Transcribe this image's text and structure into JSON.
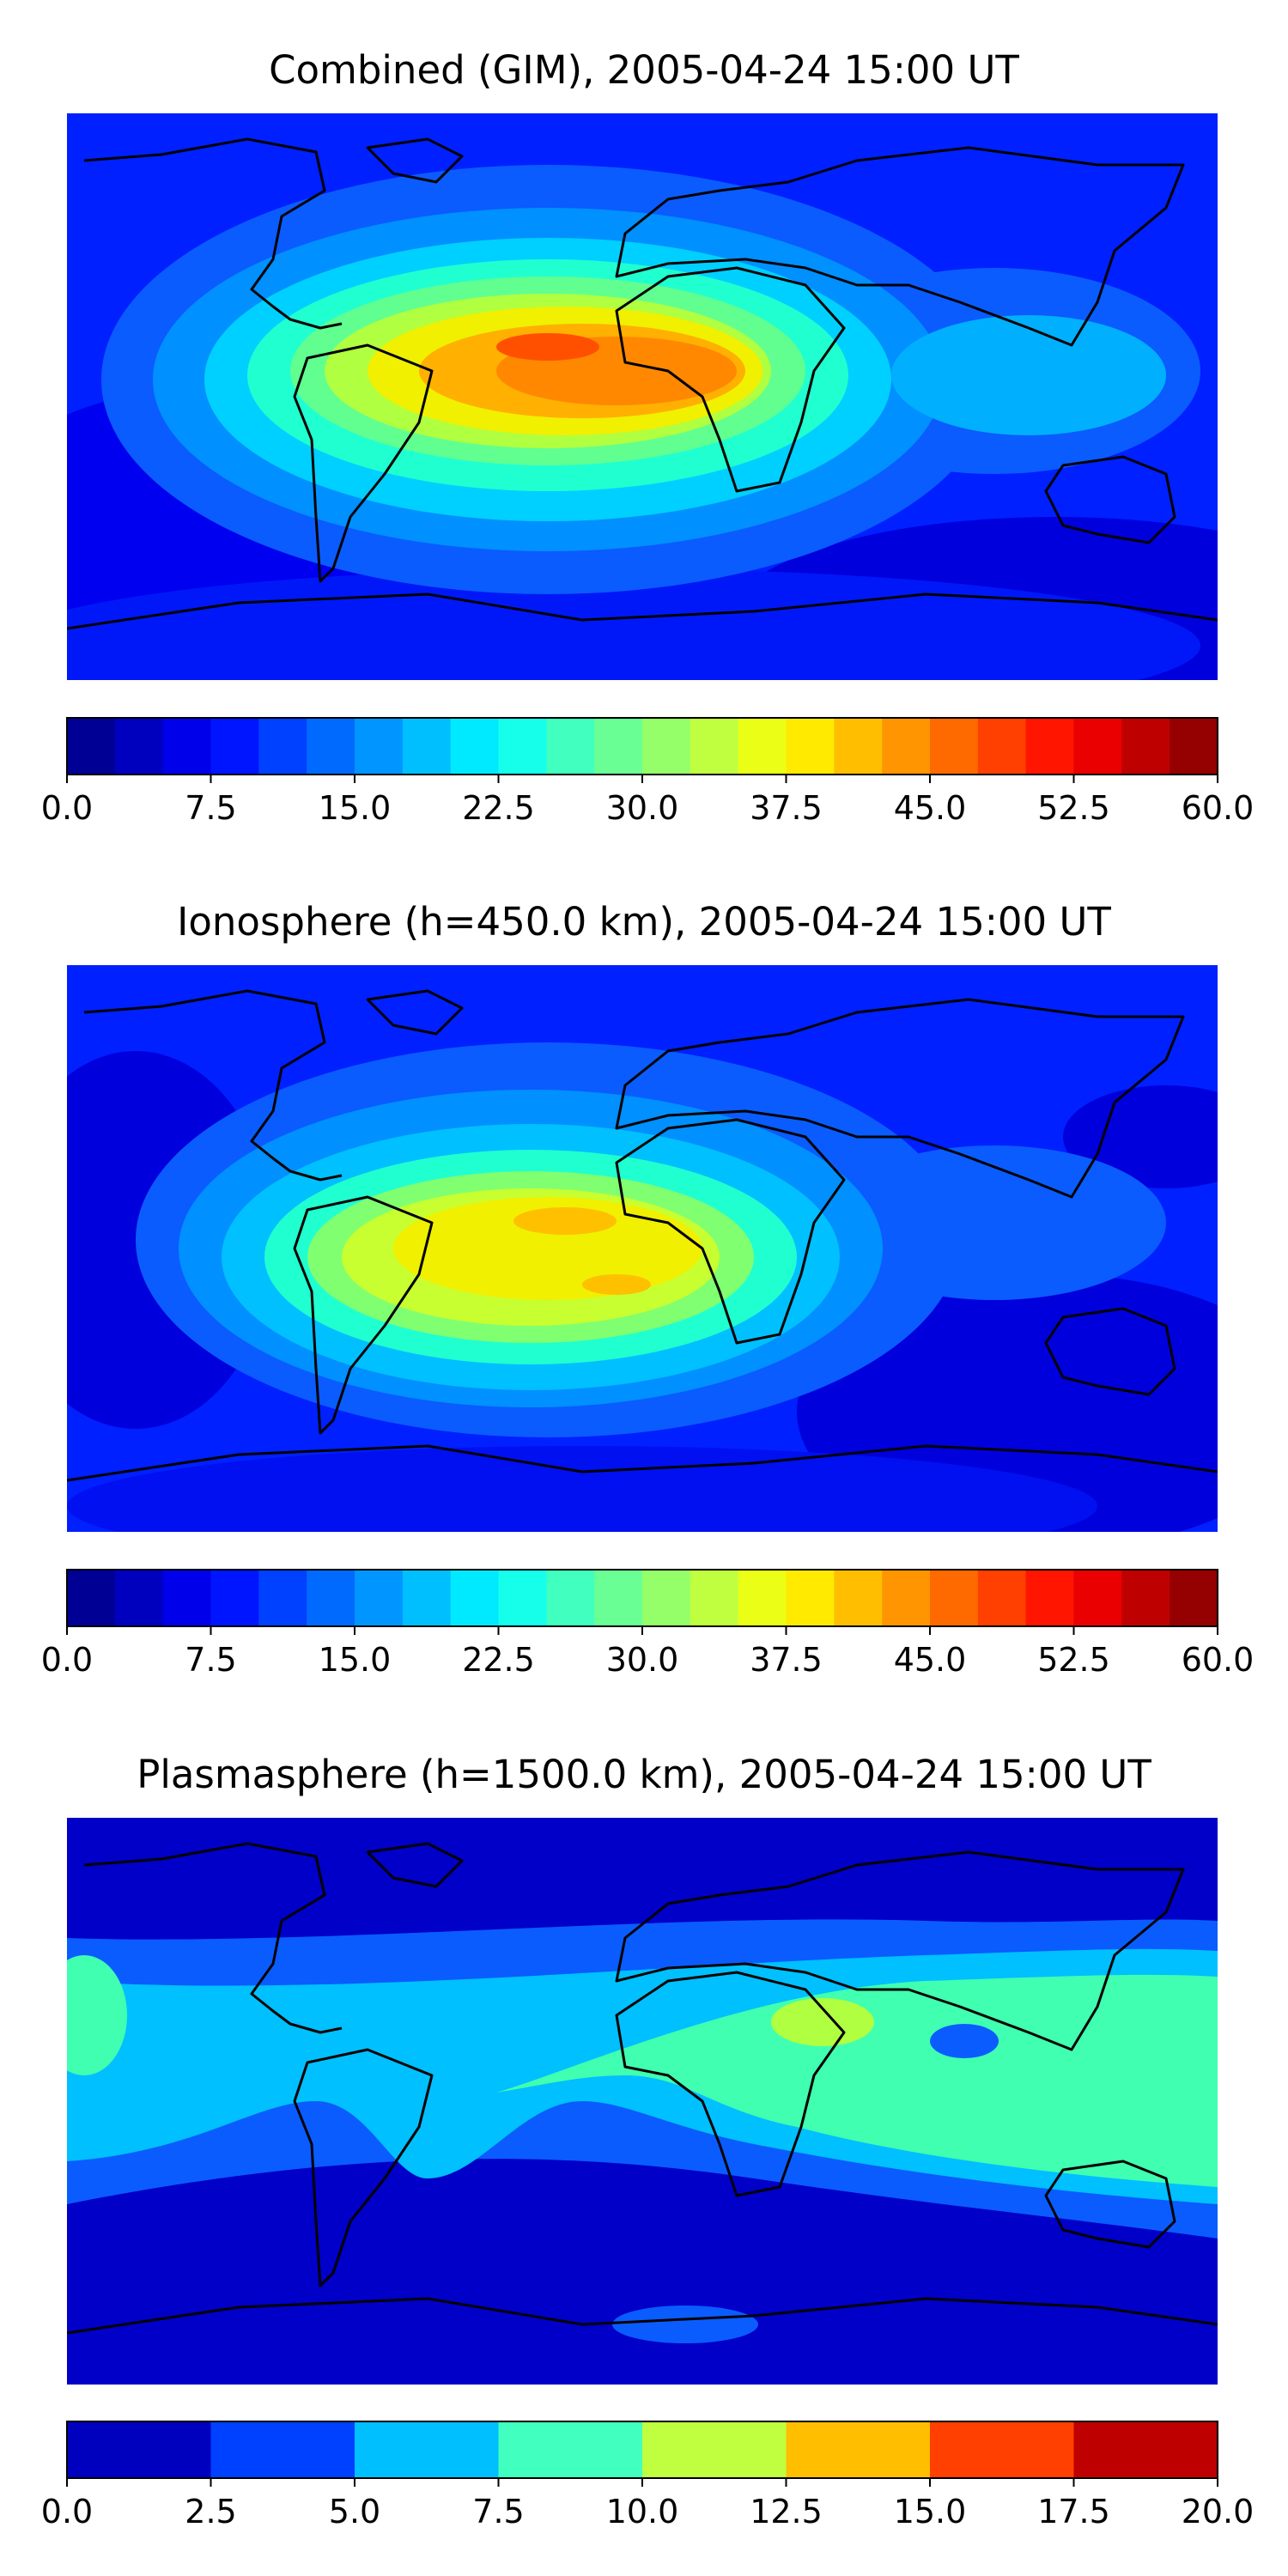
{
  "panels": [
    {
      "title": "Combined (GIM), 2005-04-24 15:00 UT",
      "colorbar": {
        "min": 0.0,
        "max": 60.0,
        "levels": 24,
        "tick_labels": [
          "0.0",
          "7.5",
          "15.0",
          "22.5",
          "30.0",
          "37.5",
          "45.0",
          "52.5",
          "60.0"
        ],
        "tick_values": [
          0,
          7.5,
          15,
          22.5,
          30,
          37.5,
          45,
          52.5,
          60
        ]
      }
    },
    {
      "title": "Ionosphere  (h=450.0 km), 2005-04-24 15:00 UT",
      "colorbar": {
        "min": 0.0,
        "max": 60.0,
        "levels": 24,
        "tick_labels": [
          "0.0",
          "7.5",
          "15.0",
          "22.5",
          "30.0",
          "37.5",
          "45.0",
          "52.5",
          "60.0"
        ],
        "tick_values": [
          0,
          7.5,
          15,
          22.5,
          30,
          37.5,
          45,
          52.5,
          60
        ]
      }
    },
    {
      "title": "Plasmasphere (h=1500.0 km), 2005-04-24 15:00 UT",
      "colorbar": {
        "min": 0.0,
        "max": 20.0,
        "levels": 8,
        "tick_labels": [
          "0.0",
          "2.5",
          "5.0",
          "7.5",
          "10.0",
          "12.5",
          "15.0",
          "17.5",
          "20.0"
        ],
        "tick_values": [
          0,
          2.5,
          5,
          7.5,
          10,
          12.5,
          15,
          17.5,
          20
        ]
      }
    }
  ],
  "colors": {
    "map_background": "#0000cd",
    "coastline": "#000000"
  }
}
